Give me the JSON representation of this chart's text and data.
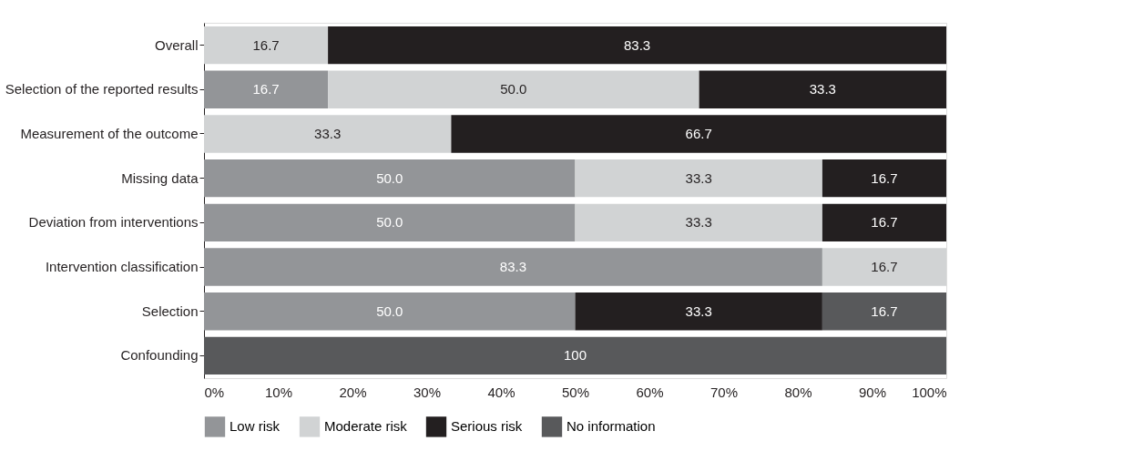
{
  "chart_data": {
    "type": "bar",
    "orientation": "horizontal",
    "stacked": true,
    "categories": [
      "Overall",
      "Selection of the reported results",
      "Measurement of the outcome",
      "Missing data",
      "Deviation from interventions",
      "Intervention classification",
      "Selection",
      "Confounding"
    ],
    "series": [
      {
        "name": "Low risk",
        "color": "#939598",
        "values": [
          null,
          16.7,
          null,
          50.0,
          50.0,
          83.3,
          50.0,
          null
        ],
        "value_labels": [
          null,
          "16.7",
          null,
          "50.0",
          "50.0",
          "83.3",
          "50.0",
          null
        ]
      },
      {
        "name": "Moderate risk",
        "color": "#d1d3d4",
        "values": [
          16.7,
          50.0,
          33.3,
          33.3,
          33.3,
          16.7,
          null,
          null
        ],
        "value_labels": [
          "16.7",
          "50.0",
          "33.3",
          "33.3",
          "33.3",
          "16.7",
          null,
          null
        ]
      },
      {
        "name": "Serious risk",
        "color": "#231f20",
        "values": [
          83.3,
          33.3,
          66.7,
          16.7,
          16.7,
          null,
          33.3,
          null
        ],
        "value_labels": [
          "83.3",
          "33.3",
          "66.7",
          "16.7",
          "16.7",
          null,
          "33.3",
          null
        ]
      },
      {
        "name": "No information",
        "color": "#58595b",
        "values": [
          null,
          null,
          null,
          null,
          null,
          null,
          16.7,
          100
        ],
        "value_labels": [
          null,
          null,
          null,
          null,
          null,
          null,
          "16.7",
          "100"
        ]
      }
    ],
    "xlim": [
      0,
      100
    ],
    "xticks": [
      {
        "value": 0,
        "label": "0%"
      },
      {
        "value": 10,
        "label": "10%"
      },
      {
        "value": 20,
        "label": "20%"
      },
      {
        "value": 30,
        "label": "30%"
      },
      {
        "value": 40,
        "label": "40%"
      },
      {
        "value": 50,
        "label": "50%"
      },
      {
        "value": 60,
        "label": "60%"
      },
      {
        "value": 70,
        "label": "70%"
      },
      {
        "value": 80,
        "label": "80%"
      },
      {
        "value": 90,
        "label": "90%"
      },
      {
        "value": 100,
        "label": "100%"
      }
    ],
    "grid": false,
    "legend": "bottom"
  }
}
